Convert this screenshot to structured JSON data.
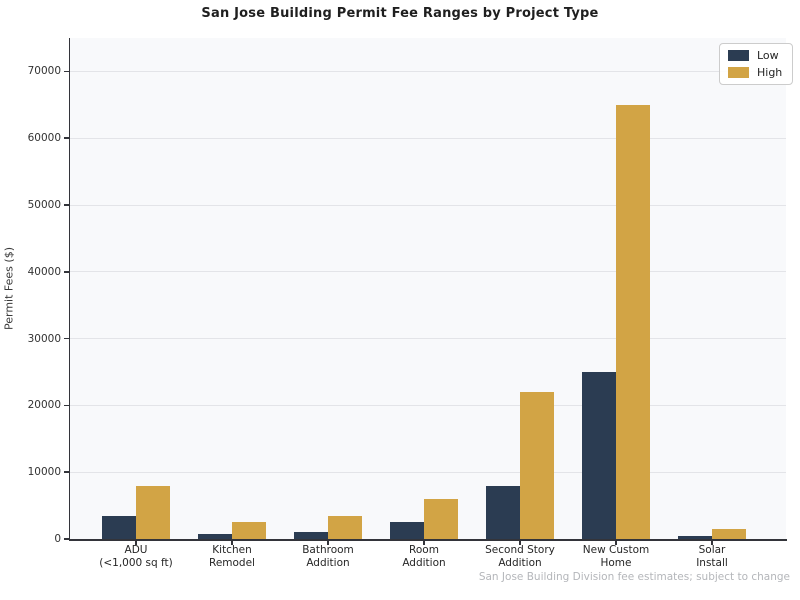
{
  "chart_data": {
    "type": "bar",
    "title": "San Jose Building Permit Fee Ranges by Project Type",
    "xlabel": "",
    "ylabel": "Permit Fees ($)",
    "ylim": [
      0,
      75000
    ],
    "yticks": [
      0,
      10000,
      20000,
      30000,
      40000,
      50000,
      60000,
      70000
    ],
    "grid": true,
    "legend_position": "upper right",
    "categories": [
      "ADU\n(<1,000 sq ft)",
      "Kitchen\nRemodel",
      "Bathroom\nAddition",
      "Room\nAddition",
      "Second Story\nAddition",
      "New Custom\nHome",
      "Solar\nInstall"
    ],
    "series": [
      {
        "name": "Low",
        "color": "#2b3c52",
        "values": [
          3500,
          800,
          1000,
          2500,
          8000,
          25000,
          500
        ]
      },
      {
        "name": "High",
        "color": "#d2a445",
        "values": [
          8000,
          2500,
          3500,
          6000,
          22000,
          65000,
          1500
        ]
      }
    ],
    "source_note": "San Jose Building Division fee estimates; subject to change"
  },
  "colors": {
    "plot_background": "#f8f9fb",
    "gridline": "#e3e4e8",
    "spine": "#33343a",
    "low_bar": "#2b3c52",
    "high_bar": "#d2a445",
    "footer_text": "#b4b6ba"
  }
}
